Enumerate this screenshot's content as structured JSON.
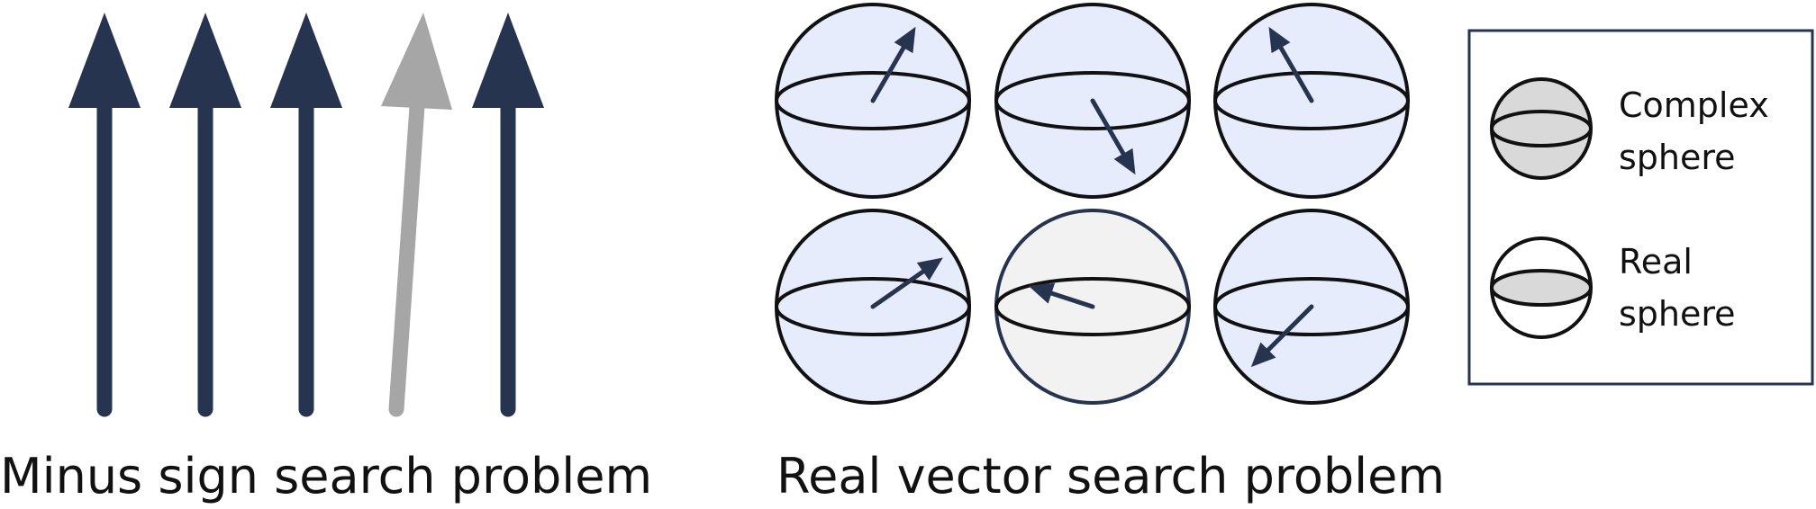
{
  "captions": {
    "left": "Minus sign search problem",
    "right": "Real vector search problem"
  },
  "legend": {
    "complex": {
      "line1": "Complex",
      "line2": "sphere"
    },
    "real": {
      "line1": "Real",
      "line2": "sphere"
    }
  },
  "colors": {
    "navy": "#27344f",
    "gray_arrow": "#a6a6a6",
    "complex_fill": "#e6ecfc",
    "real_fill": "#f2f2f2",
    "legend_fill": "#d9d9d9",
    "outline": "#111111"
  },
  "sign_arrows": [
    "up",
    "up",
    "up",
    "up",
    "up"
  ],
  "spheres": [
    {
      "kind": "complex",
      "vector_heading_deg": 60
    },
    {
      "kind": "complex",
      "vector_heading_deg": -60
    },
    {
      "kind": "complex",
      "vector_heading_deg": 120
    },
    {
      "kind": "complex",
      "vector_heading_deg": 35
    },
    {
      "kind": "real",
      "vector_heading_deg": 162
    },
    {
      "kind": "complex",
      "vector_heading_deg": -135
    }
  ]
}
